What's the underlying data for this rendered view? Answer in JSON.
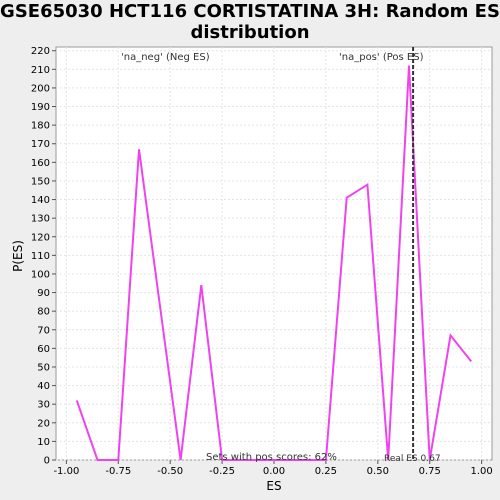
{
  "chart_data": {
    "type": "line",
    "title": "GSE65030 HCT116 CORTISTATINA 3H: Random ES distribution",
    "xlabel": "ES",
    "ylabel": "P(ES)",
    "xlim": [
      -1.05,
      1.05
    ],
    "ylim": [
      0,
      222
    ],
    "x_ticks": [
      -1.0,
      -0.75,
      -0.5,
      -0.25,
      0.0,
      0.25,
      0.5,
      0.75,
      1.0
    ],
    "x_tick_labels": [
      "-1.00",
      "-0.75",
      "-0.50",
      "-0.25",
      "0.00",
      "0.25",
      "0.50",
      "0.75",
      "1.00"
    ],
    "y_ticks": [
      0,
      10,
      20,
      30,
      40,
      50,
      60,
      70,
      80,
      90,
      100,
      110,
      120,
      130,
      140,
      150,
      160,
      170,
      180,
      190,
      200,
      210,
      220
    ],
    "grid": true,
    "series": [
      {
        "name": "",
        "color": "#ee44ee",
        "x": [
          -0.95,
          -0.85,
          -0.75,
          -0.65,
          -0.45,
          -0.35,
          -0.25,
          0.25,
          0.35,
          0.45,
          0.55,
          0.65,
          0.75,
          0.85,
          0.95
        ],
        "y": [
          32,
          0,
          0,
          167,
          0,
          94,
          0,
          0,
          141,
          148,
          0,
          212,
          0,
          67,
          53
        ]
      }
    ],
    "real_es": 0.67,
    "annotations": {
      "neg_label": "'na_neg' (Neg ES)",
      "pos_label": "'na_pos' (Pos ES)",
      "sets_label": "Sets with pos scores: 62%",
      "real_es_label": "Real ES 0.67"
    },
    "colors": {
      "neg_label": "#4444bb",
      "pos_label": "#dd4444",
      "real_es_line": "#333333"
    }
  }
}
